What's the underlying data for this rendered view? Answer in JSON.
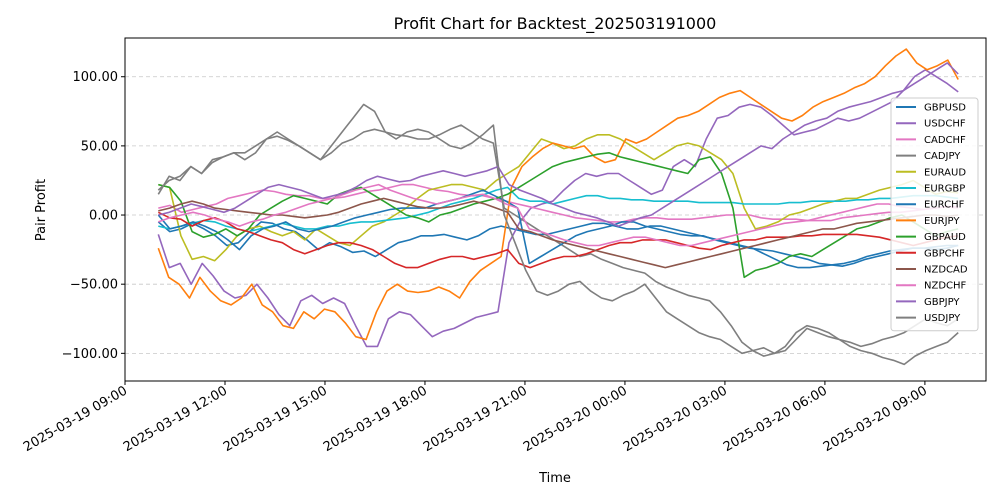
{
  "chart_data": {
    "type": "line",
    "title": "Profit Chart for Backtest_202503191000",
    "xlabel": "Time",
    "ylabel": "Pair Profit",
    "x_start": "2025-03-19 10:00",
    "x_end": "2025-03-20 10:00",
    "xlim": [
      "2025-03-19 09:00",
      "2025-03-20 10:50"
    ],
    "ylim": [
      -120,
      128
    ],
    "x_ticks": [
      "2025-03-19 09:00",
      "2025-03-19 12:00",
      "2025-03-19 15:00",
      "2025-03-19 18:00",
      "2025-03-19 21:00",
      "2025-03-20 00:00",
      "2025-03-20 03:00",
      "2025-03-20 06:00",
      "2025-03-20 09:00"
    ],
    "y_ticks": [
      "−100.00",
      "−50.00",
      "0.00",
      "50.00",
      "100.00"
    ],
    "y_tick_values": [
      -100,
      -50,
      0,
      50,
      100
    ],
    "grid": "y-dashed",
    "legend_position": "right",
    "series": [
      {
        "name": "GBPUSD",
        "color": "#1f77b4",
        "values": [
          -5,
          -12,
          -10,
          -6,
          -10,
          -15,
          -22,
          -20,
          -12,
          -5,
          -6,
          -10,
          -12,
          -18,
          -25,
          -20,
          -23,
          -27,
          -26,
          -30,
          -25,
          -20,
          -18,
          -15,
          -15,
          -14,
          -16,
          -18,
          -15,
          -10,
          -8,
          -10,
          -12,
          -14,
          -14,
          -12,
          -10,
          -8,
          -6,
          -6,
          -8,
          -10,
          -10,
          -8,
          -8,
          -10,
          -12,
          -14,
          -16,
          -18,
          -20,
          -22,
          -24,
          -28,
          -32,
          -36,
          -38,
          -38,
          -37,
          -36,
          -35,
          -33,
          -30,
          -28,
          -26,
          -25,
          -24,
          -24,
          -23,
          -22,
          -22
        ]
      },
      {
        "name": "USDCHF",
        "color": "#9467bd",
        "values": [
          -14,
          -38,
          -35,
          -50,
          -35,
          -44,
          -55,
          -60,
          -58,
          -50,
          -60,
          -72,
          -80,
          -62,
          -58,
          -64,
          -60,
          -64,
          -80,
          -95,
          -95,
          -75,
          -70,
          -72,
          -80,
          -88,
          -84,
          -82,
          -78,
          -74,
          -72,
          -70,
          -20,
          -5,
          5,
          8,
          10,
          18,
          25,
          30,
          28,
          30,
          30,
          25,
          20,
          15,
          18,
          35,
          40,
          35,
          55,
          70,
          72,
          78,
          80,
          78,
          72,
          65,
          58,
          60,
          62,
          66,
          70,
          68,
          70,
          74,
          78,
          82,
          90,
          100,
          105,
          100,
          95,
          89
        ]
      },
      {
        "name": "CADCHF",
        "color": "#e377c2",
        "values": [
          5,
          7,
          2,
          4,
          6,
          8,
          12,
          14,
          16,
          18,
          17,
          15,
          14,
          14,
          12,
          12,
          13,
          15,
          17,
          18,
          20,
          22,
          22,
          20,
          18,
          17,
          15,
          14,
          14,
          12,
          10,
          8,
          6,
          4,
          2,
          0,
          -2,
          -3,
          -4,
          -5,
          -5,
          -3,
          -2,
          -2,
          -3,
          -3,
          -3,
          -2,
          -1,
          0,
          0,
          0,
          -2,
          -3,
          -3,
          -3,
          -4,
          -4,
          -4,
          -2,
          -1,
          0,
          1,
          2,
          2,
          3,
          4,
          5,
          6,
          6
        ]
      },
      {
        "name": "CADJPY",
        "color": "#7f7f7f",
        "values": [
          15,
          28,
          25,
          35,
          30,
          40,
          42,
          45,
          45,
          50,
          55,
          57,
          54,
          50,
          45,
          40,
          45,
          52,
          55,
          60,
          62,
          60,
          58,
          57,
          55,
          55,
          58,
          62,
          65,
          60,
          55,
          52,
          5,
          0,
          -5,
          -10,
          -15,
          -20,
          -25,
          -30,
          -28,
          -32,
          -35,
          -38,
          -40,
          -42,
          -48,
          -52,
          -55,
          -58,
          -60,
          -62,
          -70,
          -80,
          -92,
          -98,
          -96,
          -100,
          -98,
          -90,
          -82,
          -85,
          -88,
          -90,
          -92,
          -95,
          -93,
          -90,
          -88,
          -85,
          -80,
          -75,
          -78,
          -80,
          -75
        ]
      },
      {
        "name": "EURAUD",
        "color": "#bcbd22",
        "values": [
          22,
          20,
          -15,
          -32,
          -30,
          -33,
          -25,
          -15,
          -10,
          -8,
          -12,
          -15,
          -12,
          -18,
          -10,
          -15,
          -20,
          -22,
          -15,
          -8,
          -5,
          0,
          5,
          12,
          18,
          20,
          22,
          22,
          20,
          18,
          25,
          30,
          35,
          45,
          55,
          52,
          48,
          50,
          55,
          58,
          58,
          55,
          50,
          45,
          40,
          45,
          50,
          52,
          50,
          45,
          40,
          30,
          5,
          -10,
          -8,
          -5,
          0,
          2,
          5,
          8,
          10,
          12,
          12,
          15,
          18,
          20,
          22,
          25,
          20,
          15,
          17,
          16
        ]
      },
      {
        "name": "EURGBP",
        "color": "#17becf",
        "values": [
          -8,
          -10,
          -8,
          -6,
          -4,
          -5,
          -8,
          -10,
          -12,
          -10,
          -8,
          -6,
          -8,
          -10,
          -10,
          -8,
          -8,
          -6,
          -5,
          -5,
          -4,
          -3,
          -2,
          0,
          2,
          5,
          8,
          10,
          12,
          15,
          18,
          20,
          12,
          10,
          10,
          8,
          10,
          12,
          14,
          14,
          12,
          12,
          11,
          11,
          10,
          10,
          10,
          10,
          9,
          9,
          9,
          9,
          8,
          8,
          8,
          8,
          9,
          9,
          10,
          10,
          10,
          10,
          11,
          11,
          12,
          12,
          13,
          14,
          14,
          14,
          13,
          12
        ]
      },
      {
        "name": "EURCHF",
        "color": "#1f77b4",
        "values": [
          0,
          -10,
          -8,
          -5,
          -8,
          -12,
          -18,
          -25,
          -15,
          -10,
          -8,
          -5,
          -10,
          -12,
          -10,
          -8,
          -5,
          -2,
          0,
          2,
          4,
          5,
          5,
          5,
          8,
          10,
          12,
          15,
          18,
          14,
          10,
          5,
          -35,
          -30,
          -25,
          -20,
          -15,
          -12,
          -10,
          -8,
          -5,
          -5,
          -8,
          -10,
          -12,
          -14,
          -15,
          -15,
          -18,
          -20,
          -22,
          -24,
          -25,
          -26,
          -28,
          -30,
          -32,
          -35,
          -36,
          -37,
          -35,
          -32,
          -30,
          -28,
          -26,
          -24,
          -24,
          -25,
          -24,
          -22
        ]
      },
      {
        "name": "EURJPY",
        "color": "#ff7f0e",
        "values": [
          -24,
          -45,
          -50,
          -60,
          -45,
          -55,
          -62,
          -65,
          -60,
          -50,
          -65,
          -70,
          -80,
          -82,
          -70,
          -75,
          -68,
          -70,
          -78,
          -88,
          -90,
          -70,
          -55,
          -50,
          -55,
          -56,
          -55,
          -52,
          -55,
          -60,
          -48,
          -40,
          -35,
          -30,
          20,
          35,
          42,
          48,
          52,
          50,
          48,
          50,
          42,
          38,
          40,
          55,
          52,
          55,
          60,
          65,
          70,
          72,
          75,
          80,
          85,
          88,
          90,
          85,
          80,
          75,
          70,
          68,
          72,
          78,
          82,
          85,
          88,
          92,
          95,
          100,
          108,
          115,
          120,
          110,
          105,
          108,
          112,
          98
        ]
      },
      {
        "name": "GBPAUD",
        "color": "#2ca02c",
        "values": [
          22,
          20,
          10,
          -12,
          -16,
          -14,
          -10,
          -15,
          -10,
          0,
          5,
          10,
          14,
          12,
          10,
          8,
          15,
          18,
          20,
          15,
          10,
          5,
          0,
          -2,
          -5,
          0,
          2,
          5,
          8,
          10,
          12,
          15,
          20,
          25,
          30,
          35,
          38,
          40,
          42,
          44,
          45,
          42,
          40,
          38,
          36,
          34,
          32,
          30,
          40,
          42,
          30,
          5,
          -45,
          -40,
          -38,
          -35,
          -30,
          -28,
          -30,
          -25,
          -20,
          -15,
          -10,
          -8,
          -5,
          -2,
          0,
          -5,
          -10,
          -15,
          -12,
          -10
        ]
      },
      {
        "name": "GBPCHF",
        "color": "#d62728",
        "values": [
          2,
          -2,
          -3,
          -8,
          -4,
          -2,
          -5,
          -10,
          -12,
          -15,
          -18,
          -20,
          -25,
          -28,
          -25,
          -22,
          -20,
          -20,
          -22,
          -25,
          -30,
          -35,
          -38,
          -38,
          -35,
          -32,
          -30,
          -30,
          -32,
          -30,
          -28,
          -25,
          -35,
          -38,
          -35,
          -32,
          -30,
          -30,
          -28,
          -25,
          -22,
          -20,
          -20,
          -18,
          -18,
          -18,
          -20,
          -22,
          -24,
          -25,
          -22,
          -20,
          -18,
          -18,
          -16,
          -16,
          -16,
          -15,
          -15,
          -14,
          -14,
          -14,
          -14,
          -15,
          -16,
          -18,
          -20,
          -22,
          -20,
          -18,
          -16,
          -15
        ]
      },
      {
        "name": "NZDCAD",
        "color": "#8c564b",
        "values": [
          3,
          5,
          8,
          10,
          8,
          5,
          4,
          3,
          2,
          1,
          0,
          0,
          -1,
          -2,
          -1,
          0,
          2,
          5,
          8,
          10,
          12,
          10,
          8,
          6,
          5,
          5,
          6,
          8,
          10,
          8,
          5,
          2,
          -10,
          -12,
          -15,
          -18,
          -20,
          -22,
          -24,
          -26,
          -28,
          -30,
          -32,
          -34,
          -36,
          -38,
          -36,
          -34,
          -32,
          -30,
          -28,
          -26,
          -24,
          -22,
          -20,
          -18,
          -16,
          -14,
          -12,
          -10,
          -10,
          -8,
          -6,
          -5,
          -4,
          -3,
          -2,
          -1,
          0,
          0,
          -1,
          0
        ]
      },
      {
        "name": "NZDCHF",
        "color": "#e377c2",
        "values": [
          -5,
          -2,
          0,
          2,
          0,
          -3,
          -5,
          -8,
          -5,
          -3,
          0,
          2,
          5,
          8,
          10,
          12,
          15,
          18,
          20,
          22,
          18,
          15,
          12,
          10,
          8,
          10,
          12,
          14,
          15,
          12,
          8,
          5,
          -10,
          -12,
          -15,
          -18,
          -20,
          -22,
          -22,
          -20,
          -18,
          -16,
          -16,
          -18,
          -20,
          -22,
          -22,
          -20,
          -18,
          -16,
          -14,
          -12,
          -10,
          -8,
          -6,
          -5,
          -4,
          -2,
          0,
          2,
          4,
          6,
          8,
          8,
          6,
          5,
          4,
          5,
          6,
          5
        ]
      },
      {
        "name": "GBPJPY",
        "color": "#9467bd",
        "values": [
          0,
          2,
          5,
          8,
          6,
          4,
          2,
          5,
          10,
          15,
          20,
          22,
          20,
          18,
          15,
          12,
          14,
          16,
          20,
          25,
          28,
          26,
          24,
          25,
          28,
          30,
          32,
          30,
          28,
          30,
          32,
          35,
          22,
          18,
          15,
          12,
          8,
          5,
          2,
          0,
          -2,
          -5,
          -8,
          -5,
          -2,
          0,
          5,
          10,
          15,
          20,
          25,
          30,
          35,
          40,
          45,
          50,
          48,
          55,
          60,
          65,
          68,
          70,
          75,
          78,
          80,
          82,
          85,
          88,
          90,
          95,
          100,
          105,
          110,
          102
        ]
      },
      {
        "name": "USDJPY",
        "color": "#7f7f7f",
        "values": [
          18,
          25,
          28,
          35,
          30,
          38,
          42,
          45,
          40,
          45,
          55,
          60,
          55,
          50,
          45,
          40,
          50,
          60,
          70,
          80,
          75,
          60,
          55,
          60,
          62,
          60,
          55,
          50,
          48,
          52,
          58,
          65,
          0,
          -20,
          -40,
          -55,
          -58,
          -55,
          -50,
          -48,
          -55,
          -60,
          -62,
          -58,
          -55,
          -50,
          -60,
          -70,
          -75,
          -80,
          -85,
          -88,
          -90,
          -95,
          -100,
          -98,
          -102,
          -100,
          -95,
          -85,
          -80,
          -82,
          -85,
          -90,
          -95,
          -98,
          -100,
          -103,
          -105,
          -108,
          -102,
          -98,
          -95,
          -92,
          -85
        ]
      }
    ]
  }
}
